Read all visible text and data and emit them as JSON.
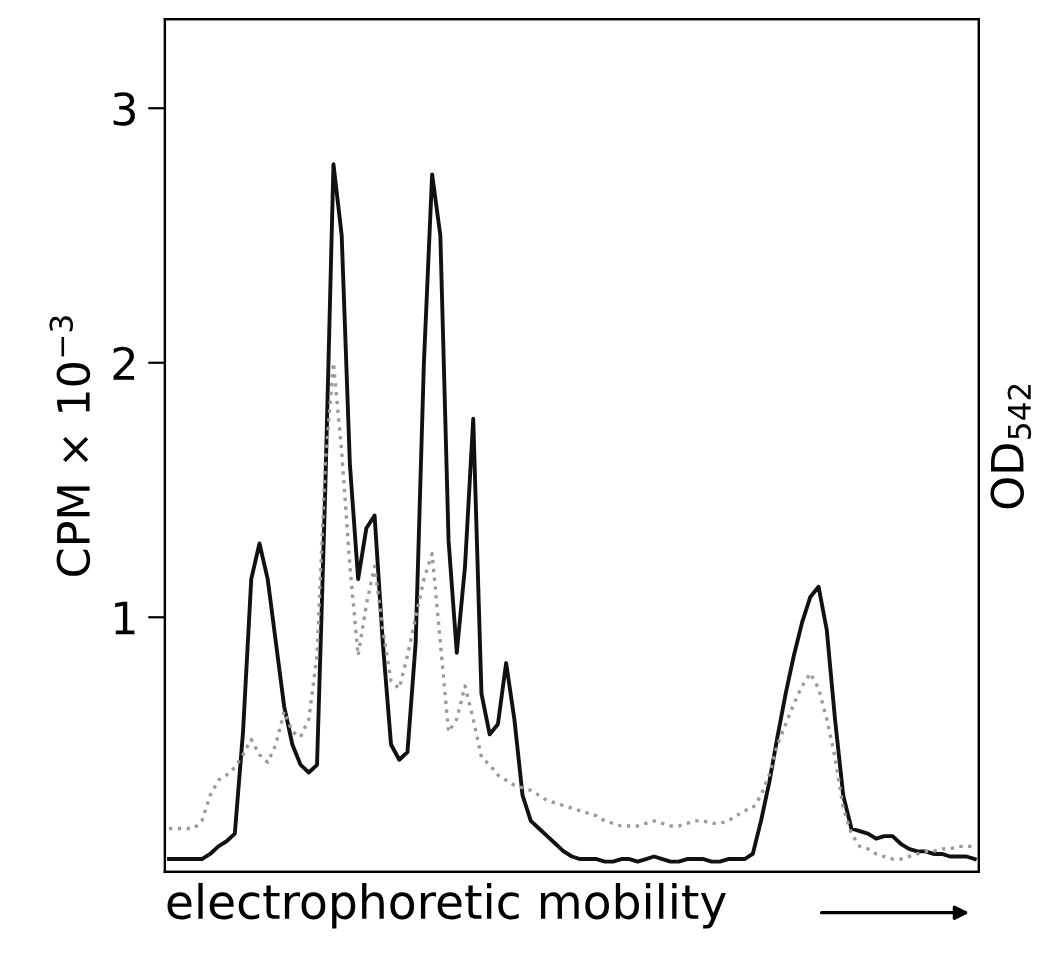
{
  "chart_data": {
    "type": "line",
    "xlabel": "electrophoretic mobility",
    "ylabel": "CPM × 10$^{−3}$",
    "y2label": "OD$_{542}$",
    "categories": [
      null,
      null,
      null,
      null,
      null,
      null,
      null,
      null,
      null,
      null,
      null,
      null,
      null,
      null,
      null,
      null,
      null,
      null,
      null,
      null,
      null,
      null,
      null,
      null,
      null,
      null,
      null,
      null,
      null,
      null,
      null,
      null,
      null,
      null,
      null,
      null,
      null,
      null,
      null,
      null,
      null,
      null,
      null,
      null,
      null,
      null,
      null,
      null,
      null,
      null,
      null,
      null,
      null,
      null,
      null,
      null,
      null,
      null,
      null,
      null,
      null,
      null,
      null,
      null,
      null,
      null,
      null,
      null,
      null,
      null,
      null,
      null,
      null,
      null,
      null,
      null,
      null,
      null,
      null,
      null,
      null,
      null,
      null,
      null,
      null,
      null,
      null,
      null,
      null,
      null,
      null,
      null,
      null,
      null,
      null,
      null,
      null,
      null,
      null
    ],
    "series": [
      {
        "color": "#111111",
        "line_style": "solid",
        "values": [
          0.05,
          0.05,
          0.05,
          0.05,
          0.05,
          0.07,
          0.1,
          0.12,
          0.15,
          0.55,
          1.15,
          1.29,
          1.15,
          0.9,
          0.65,
          0.5,
          0.42,
          0.39,
          0.42,
          1.5,
          2.78,
          2.5,
          1.6,
          1.15,
          1.35,
          1.4,
          0.9,
          0.5,
          0.44,
          0.47,
          0.9,
          2.0,
          2.74,
          2.5,
          1.3,
          0.86,
          1.2,
          1.78,
          0.7,
          0.54,
          0.58,
          0.82,
          0.6,
          0.3,
          0.2,
          0.17,
          0.14,
          0.11,
          0.08,
          0.06,
          0.05,
          0.05,
          0.05,
          0.04,
          0.04,
          0.05,
          0.05,
          0.04,
          0.05,
          0.06,
          0.05,
          0.04,
          0.04,
          0.05,
          0.05,
          0.05,
          0.04,
          0.04,
          0.05,
          0.05,
          0.05,
          0.07,
          0.2,
          0.35,
          0.53,
          0.7,
          0.85,
          0.98,
          1.08,
          1.12,
          0.95,
          0.6,
          0.3,
          0.17,
          0.16,
          0.15,
          0.13,
          0.14,
          0.14,
          0.11,
          0.09,
          0.08,
          0.08,
          0.07,
          0.07,
          0.06,
          0.06,
          0.06,
          0.05
        ]
      },
      {
        "color": "#9a9a9a",
        "line_style": "dotted",
        "values": [
          0.17,
          0.17,
          0.17,
          0.17,
          0.2,
          0.3,
          0.36,
          0.38,
          0.41,
          0.46,
          0.52,
          0.46,
          0.43,
          0.5,
          0.63,
          0.55,
          0.53,
          0.6,
          0.85,
          1.6,
          2.0,
          1.65,
          1.2,
          0.85,
          1.05,
          1.2,
          0.95,
          0.75,
          0.72,
          0.85,
          1.0,
          1.15,
          1.25,
          0.9,
          0.55,
          0.6,
          0.73,
          0.6,
          0.45,
          0.42,
          0.38,
          0.36,
          0.34,
          0.33,
          0.32,
          0.3,
          0.28,
          0.27,
          0.26,
          0.25,
          0.24,
          0.23,
          0.22,
          0.2,
          0.19,
          0.18,
          0.18,
          0.18,
          0.19,
          0.2,
          0.19,
          0.18,
          0.18,
          0.19,
          0.2,
          0.2,
          0.19,
          0.19,
          0.2,
          0.22,
          0.24,
          0.25,
          0.3,
          0.38,
          0.5,
          0.58,
          0.66,
          0.73,
          0.78,
          0.72,
          0.6,
          0.45,
          0.25,
          0.15,
          0.1,
          0.09,
          0.07,
          0.06,
          0.05,
          0.05,
          0.06,
          0.07,
          0.08,
          0.08,
          0.09,
          0.09,
          0.1,
          0.1,
          0.1
        ]
      }
    ],
    "ylim": [
      0,
      3.35
    ],
    "yticks": [
      1,
      2,
      3
    ],
    "tick_labels": "y",
    "grid": false,
    "legend": false
  }
}
